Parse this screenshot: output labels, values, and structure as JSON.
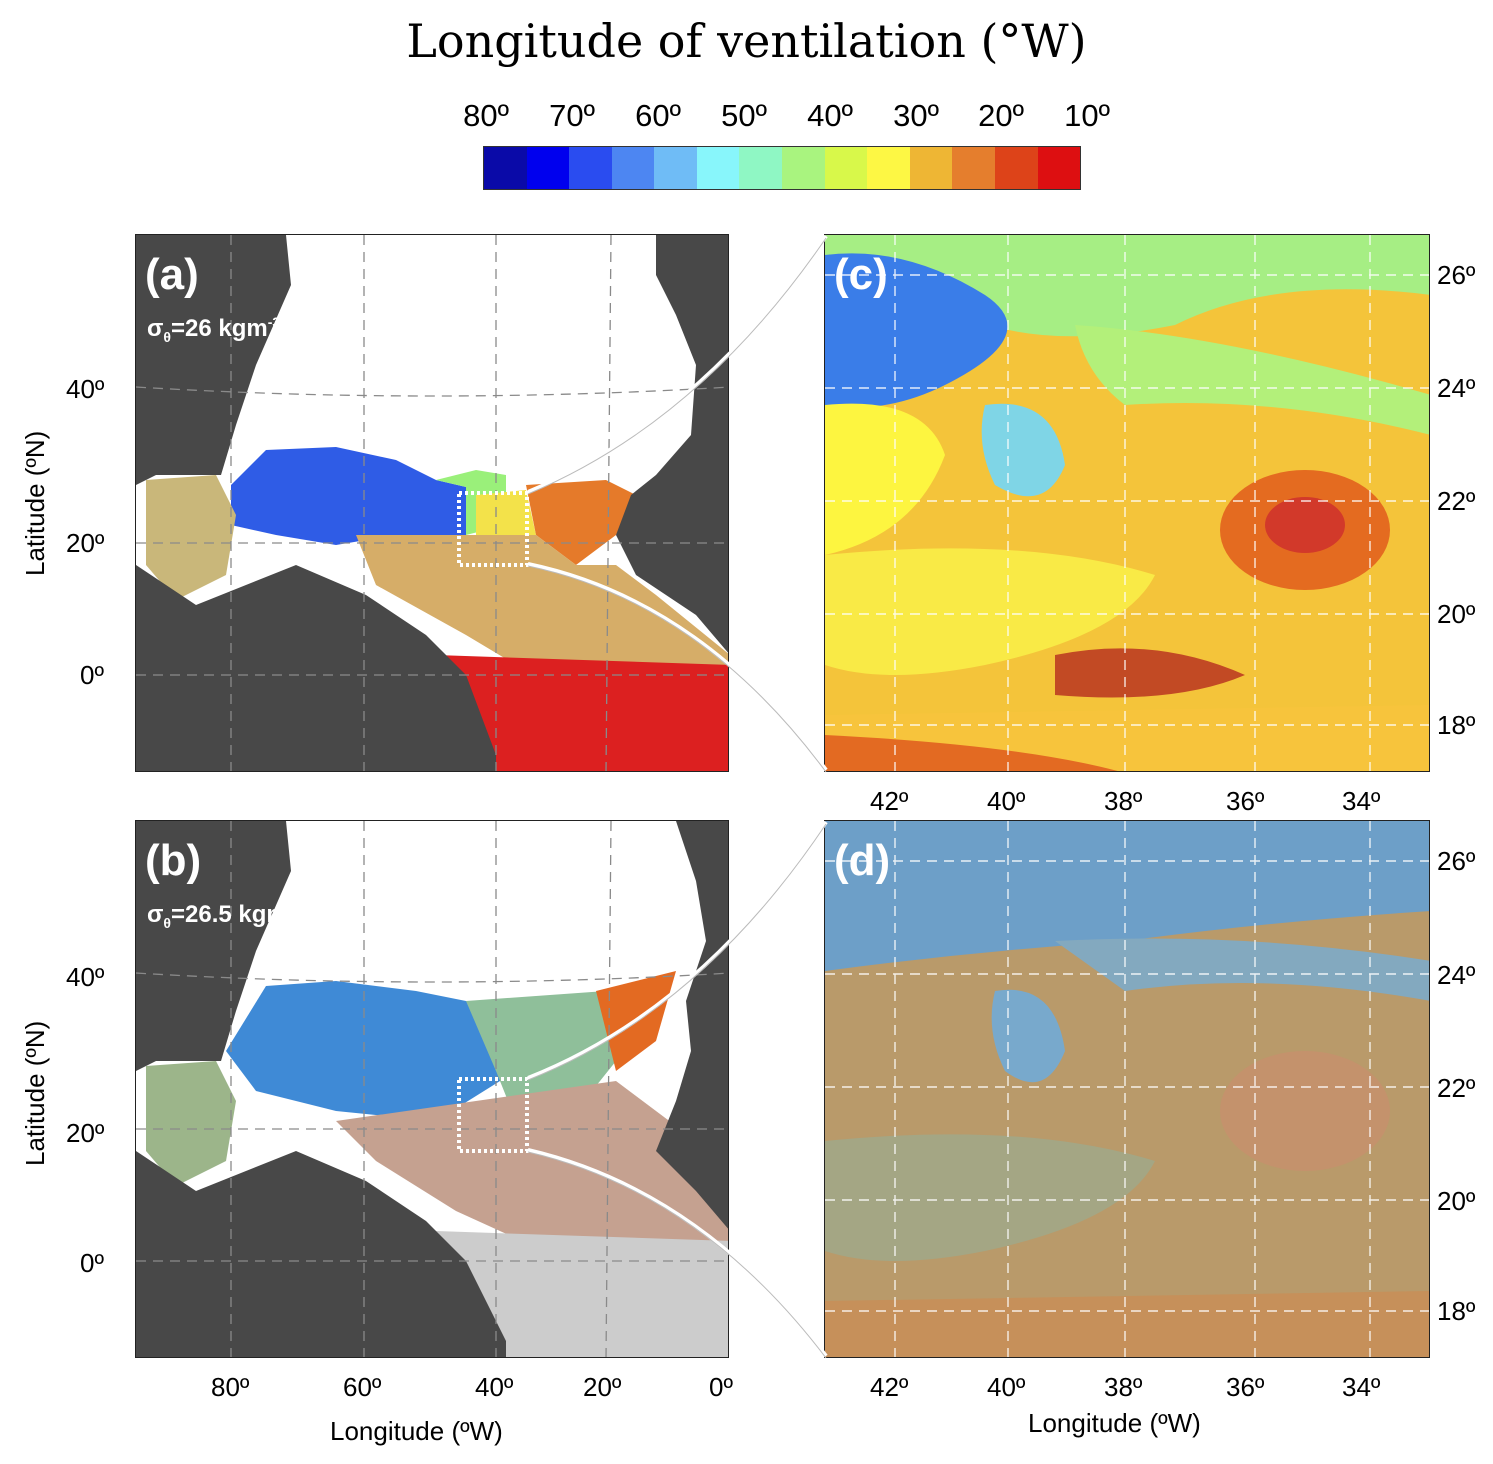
{
  "title": "Longitude of ventilation (°W)",
  "colorbar": {
    "labels": [
      "80º",
      "70º",
      "60º",
      "50º",
      "40º",
      "30º",
      "20º",
      "10º"
    ],
    "colors": [
      "#0a0aa8",
      "#0000ee",
      "#2a4cf0",
      "#4d86f2",
      "#6fbcf6",
      "#88f6fb",
      "#8ff7c4",
      "#a9f47f",
      "#d8f84a",
      "#fdf744",
      "#eeb634",
      "#e57e2d",
      "#dd4319",
      "#dd0f11"
    ]
  },
  "panels": {
    "a": {
      "label": "(a)",
      "sigma_prefix": "σ",
      "sigma_sub": "θ",
      "sigma_value": "=26 kgm",
      "sigma_sup": "-3"
    },
    "b": {
      "label": "(b)",
      "sigma_prefix": "σ",
      "sigma_sub": "θ",
      "sigma_value": "=26.5 kgm",
      "sigma_sup": "-3"
    },
    "c": {
      "label": "(c)"
    },
    "d": {
      "label": "(d)"
    }
  },
  "left_axes": {
    "y_ticks": [
      "40º",
      "20º",
      "0º"
    ],
    "x_ticks": [
      "80º",
      "60º",
      "40º",
      "20º",
      "0º"
    ],
    "ylabel": "Latitude (ºN)",
    "xlabel": "Longitude (ºW)"
  },
  "right_axes": {
    "y_ticks": [
      "26º",
      "24º",
      "22º",
      "20º",
      "18º"
    ],
    "x_ticks": [
      "42º",
      "40º",
      "38º",
      "36º",
      "34º"
    ],
    "xlabel": "Longitude (ºW)"
  },
  "colors": {
    "land": "#484848",
    "ocean_blank": "#ffffff",
    "gray_noise": "#c8c8c8"
  }
}
